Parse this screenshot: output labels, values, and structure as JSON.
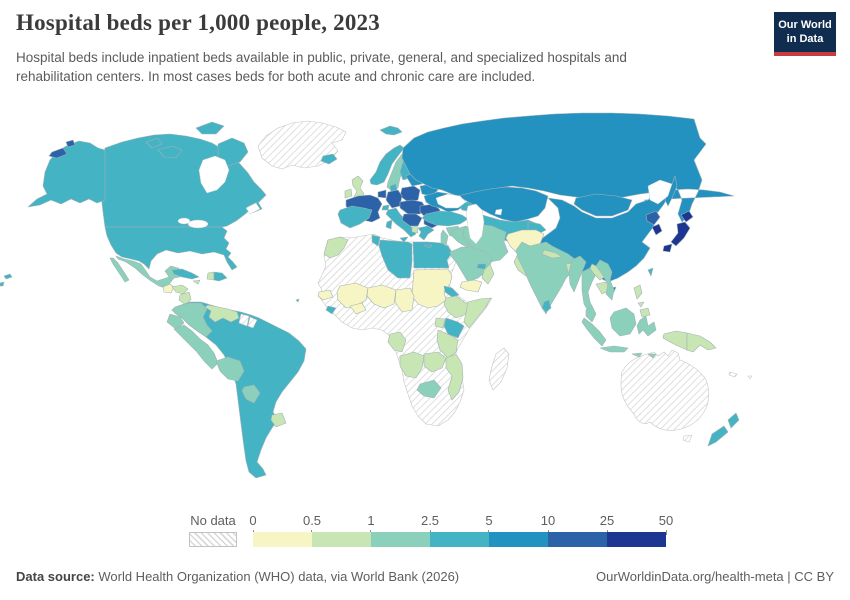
{
  "header": {
    "title": "Hospital beds per 1,000 people, 2023",
    "subtitle": "Hospital beds include inpatient beds available in public, private, general, and specialized hospitals and rehabilitation centers. In most cases beds for both acute and chronic care are included.",
    "logo_line1": "Our World",
    "logo_line2": "in Data",
    "logo_bg": "#102d50",
    "logo_accent": "#c53d3e"
  },
  "legend": {
    "no_data_label": "No data",
    "tick_labels": [
      "0",
      "0.5",
      "1",
      "2.5",
      "5",
      "10",
      "25",
      "50"
    ],
    "colors": [
      "#f8f5c5",
      "#c8e6b3",
      "#8bd0ba",
      "#44b3c3",
      "#2492c1",
      "#2c62a7",
      "#1d3691"
    ]
  },
  "footer": {
    "source_prefix": "Data source:",
    "source_text": " World Health Organization (WHO) data, via World Bank (2026)",
    "credit": "OurWorldinData.org/health-meta | CC BY"
  },
  "map": {
    "land_stroke": "#a4b2b6",
    "no_data_stroke": "#c6c6c6",
    "sea_stroke": "#c3ccd0",
    "bins": {
      "greenland": 0,
      "iceland": 4,
      "canada": 4,
      "victoria-island": 4,
      "baffin-island": 4,
      "ellesmere-island": 4,
      "banks-island": 4,
      "newfoundland": 4,
      "alaska": 4,
      "alaska-patch": 6,
      "usa": 4,
      "hawaii": 4,
      "mexico": 3,
      "guatemala": 1,
      "honduras": 2,
      "nicaragua": 2,
      "costa-rica": 3,
      "panama": 3,
      "cuba": 4,
      "jamaica": 2,
      "haiti": 2,
      "dominican-republic": 4,
      "south-america": 4,
      "colombia": 3,
      "venezuela": 2,
      "suriname": 0,
      "french-guiana": 0,
      "ecuador": 3,
      "peru": 3,
      "bolivia": 3,
      "paraguay": 3,
      "uruguay": 2,
      "africa": 0,
      "morocco": 2,
      "tunisia": 4,
      "libya": 4,
      "egypt": 4,
      "sudan": 1,
      "eritrea": 4,
      "ethiopia": 2,
      "somalia": 2,
      "kenya": 4,
      "uganda": 2,
      "tanzania": 2,
      "gabon-congo": 2,
      "angola": 2,
      "zambia": 2,
      "mozambique": 2,
      "botswana": 3,
      "madagascar": 0,
      "senegal": 1,
      "mali": 1,
      "burkina-faso": 1,
      "niger": 1,
      "chad": 1,
      "guinea": 4,
      "norway": 4,
      "sweden": 3,
      "finland": 4,
      "denmark": 4,
      "uk": 2,
      "ireland": 2,
      "svalbard": 4,
      "novaya-zemlya": 5,
      "baltics": 5,
      "belarus": 5,
      "poland": 6,
      "germany": 6,
      "benelux": 6,
      "france": 6,
      "spain": 4,
      "italy": 4,
      "switzerland": 4,
      "central-europe": 6,
      "balkans": 6,
      "albania": 2,
      "greece": 4,
      "romania": 6,
      "bulgaria": 6,
      "ukraine": 5,
      "russia": 5,
      "kazakhstan": 5,
      "central-asia-south": 4,
      "kyrgyz-tajik": 4,
      "caucasus": 4,
      "mongolia": 5,
      "china": 5,
      "hainan": 5,
      "taiwan": 4,
      "north-korea": 6,
      "south-korea": 7,
      "japan": 7,
      "sakhalin": 5,
      "turkey": 4,
      "syria": 3,
      "jordan-israel": 3,
      "iraq": 3,
      "iran": 3,
      "afghanistan": 1,
      "pakistan": 2,
      "saudi-arabia": 3,
      "yemen": 1,
      "oman": 2,
      "uae": 4,
      "india": 3,
      "nepal": 2,
      "bangladesh": 2,
      "sri-lanka": 4,
      "myanmar": 3,
      "thailand": 3,
      "laos": 2,
      "cambodia": 2,
      "vietnam": 3,
      "malaysia": 3,
      "indonesia": 3,
      "west-papua": 2,
      "papua-new-guinea": 2,
      "philippines": 2,
      "australia": 0,
      "tasmania": 0,
      "new-zealand": 4,
      "new-caledonia": 0,
      "fiji": 0,
      "pacific-specks": 4
    }
  }
}
